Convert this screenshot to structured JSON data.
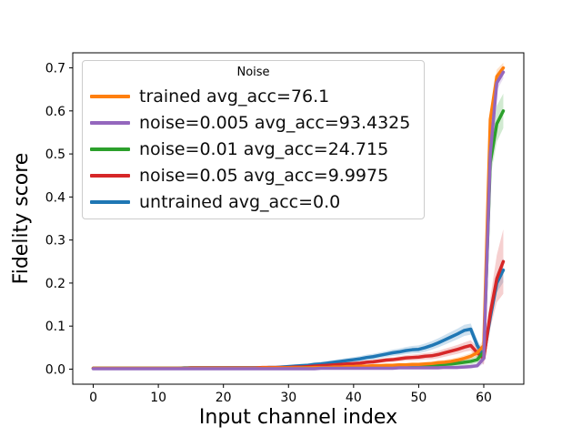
{
  "chart_data": {
    "type": "line",
    "title": "",
    "xlabel": "Input channel index",
    "ylabel": "Fidelity score",
    "legend_title": "Noise",
    "legend_position": "upper left",
    "grid": false,
    "x_is_index": true,
    "n_points": 64,
    "xlim": [
      -3.15,
      66.15
    ],
    "ylim": [
      -0.035,
      0.735
    ],
    "x_ticks": [
      0,
      10,
      20,
      30,
      40,
      50,
      60
    ],
    "y_ticks": [
      0.0,
      0.1,
      0.2,
      0.3,
      0.4,
      0.5,
      0.6,
      0.7
    ],
    "draw_order": [
      4,
      3,
      2,
      0,
      1
    ],
    "series": [
      {
        "id": "trained",
        "label": "trained avg_acc=76.1",
        "color": "#ff7f0e",
        "values": [
          0.002,
          0.002,
          0.002,
          0.002,
          0.002,
          0.002,
          0.002,
          0.002,
          0.002,
          0.002,
          0.002,
          0.002,
          0.002,
          0.002,
          0.002,
          0.002,
          0.002,
          0.002,
          0.002,
          0.002,
          0.002,
          0.002,
          0.002,
          0.002,
          0.002,
          0.002,
          0.003,
          0.003,
          0.003,
          0.003,
          0.003,
          0.003,
          0.003,
          0.003,
          0.004,
          0.004,
          0.004,
          0.005,
          0.005,
          0.006,
          0.006,
          0.007,
          0.007,
          0.008,
          0.008,
          0.009,
          0.009,
          0.01,
          0.01,
          0.011,
          0.011,
          0.012,
          0.013,
          0.015,
          0.016,
          0.018,
          0.021,
          0.025,
          0.03,
          0.038,
          0.055,
          0.58,
          0.68,
          0.7
        ],
        "band": [
          [
            0,
            0.002
          ],
          [
            50,
            0.004
          ],
          [
            59,
            0.008
          ],
          [
            60,
            0.015
          ],
          [
            61,
            0.02
          ],
          [
            63,
            0.012
          ]
        ]
      },
      {
        "id": "noise-0005",
        "label": "noise=0.005 avg_acc=93.4325",
        "color": "#9467bd",
        "values": [
          0.001,
          0.001,
          0.001,
          0.001,
          0.001,
          0.001,
          0.001,
          0.001,
          0.001,
          0.001,
          0.001,
          0.001,
          0.001,
          0.001,
          0.001,
          0.001,
          0.001,
          0.001,
          0.001,
          0.001,
          0.001,
          0.001,
          0.001,
          0.001,
          0.001,
          0.001,
          0.001,
          0.001,
          0.001,
          0.001,
          0.001,
          0.001,
          0.001,
          0.001,
          0.001,
          0.002,
          0.002,
          0.002,
          0.002,
          0.002,
          0.002,
          0.002,
          0.002,
          0.002,
          0.002,
          0.002,
          0.002,
          0.003,
          0.003,
          0.003,
          0.003,
          0.003,
          0.003,
          0.003,
          0.004,
          0.004,
          0.004,
          0.005,
          0.006,
          0.008,
          0.025,
          0.5,
          0.665,
          0.69
        ],
        "band": [
          [
            0,
            0.002
          ],
          [
            55,
            0.003
          ],
          [
            59,
            0.005
          ],
          [
            60,
            0.012
          ],
          [
            61,
            0.02
          ],
          [
            63,
            0.015
          ]
        ]
      },
      {
        "id": "noise-001",
        "label": "noise=0.01 avg_acc=24.715",
        "color": "#2ca02c",
        "values": [
          0.002,
          0.002,
          0.002,
          0.002,
          0.002,
          0.002,
          0.002,
          0.002,
          0.002,
          0.002,
          0.002,
          0.002,
          0.002,
          0.002,
          0.002,
          0.002,
          0.002,
          0.002,
          0.002,
          0.002,
          0.002,
          0.002,
          0.002,
          0.002,
          0.002,
          0.002,
          0.002,
          0.002,
          0.002,
          0.002,
          0.002,
          0.002,
          0.003,
          0.003,
          0.003,
          0.003,
          0.003,
          0.004,
          0.004,
          0.004,
          0.004,
          0.005,
          0.005,
          0.005,
          0.006,
          0.006,
          0.006,
          0.007,
          0.007,
          0.008,
          0.008,
          0.009,
          0.009,
          0.01,
          0.011,
          0.012,
          0.014,
          0.016,
          0.018,
          0.022,
          0.04,
          0.48,
          0.57,
          0.6
        ],
        "band": [
          [
            0,
            0.002
          ],
          [
            50,
            0.004
          ],
          [
            59,
            0.008
          ],
          [
            60,
            0.015
          ],
          [
            61,
            0.035
          ],
          [
            62,
            0.042
          ],
          [
            63,
            0.04
          ]
        ]
      },
      {
        "id": "noise-005",
        "label": "noise=0.05 avg_acc=9.9975",
        "color": "#d62728",
        "values": [
          0.002,
          0.002,
          0.002,
          0.002,
          0.002,
          0.002,
          0.002,
          0.002,
          0.002,
          0.002,
          0.002,
          0.002,
          0.002,
          0.002,
          0.002,
          0.003,
          0.003,
          0.003,
          0.003,
          0.003,
          0.003,
          0.003,
          0.003,
          0.003,
          0.003,
          0.003,
          0.004,
          0.004,
          0.004,
          0.004,
          0.004,
          0.005,
          0.005,
          0.006,
          0.007,
          0.008,
          0.009,
          0.01,
          0.011,
          0.012,
          0.013,
          0.014,
          0.016,
          0.017,
          0.019,
          0.021,
          0.022,
          0.024,
          0.026,
          0.027,
          0.028,
          0.03,
          0.031,
          0.034,
          0.038,
          0.042,
          0.046,
          0.051,
          0.055,
          0.038,
          0.025,
          0.13,
          0.21,
          0.25
        ],
        "band": [
          [
            0,
            0.002
          ],
          [
            30,
            0.003
          ],
          [
            45,
            0.005
          ],
          [
            52,
            0.008
          ],
          [
            57,
            0.011
          ],
          [
            59,
            0.013
          ],
          [
            60,
            0.015
          ],
          [
            61,
            0.035
          ],
          [
            62,
            0.055
          ],
          [
            63,
            0.075
          ]
        ]
      },
      {
        "id": "untrained",
        "label": "untrained avg_acc=0.0",
        "color": "#1f77b4",
        "values": [
          0.002,
          0.002,
          0.002,
          0.002,
          0.002,
          0.002,
          0.002,
          0.002,
          0.002,
          0.002,
          0.002,
          0.002,
          0.002,
          0.002,
          0.003,
          0.003,
          0.003,
          0.003,
          0.003,
          0.003,
          0.003,
          0.003,
          0.003,
          0.003,
          0.003,
          0.003,
          0.003,
          0.004,
          0.004,
          0.005,
          0.006,
          0.007,
          0.008,
          0.009,
          0.011,
          0.012,
          0.014,
          0.016,
          0.018,
          0.02,
          0.022,
          0.024,
          0.027,
          0.029,
          0.032,
          0.035,
          0.038,
          0.04,
          0.043,
          0.045,
          0.046,
          0.05,
          0.055,
          0.061,
          0.068,
          0.075,
          0.082,
          0.09,
          0.093,
          0.055,
          0.03,
          0.12,
          0.2,
          0.23
        ],
        "band": [
          [
            0,
            0.002
          ],
          [
            30,
            0.004
          ],
          [
            45,
            0.007
          ],
          [
            52,
            0.01
          ],
          [
            57,
            0.013
          ],
          [
            59,
            0.013
          ],
          [
            60,
            0.01
          ],
          [
            61,
            0.015
          ],
          [
            62,
            0.022
          ],
          [
            63,
            0.028
          ]
        ]
      }
    ]
  }
}
